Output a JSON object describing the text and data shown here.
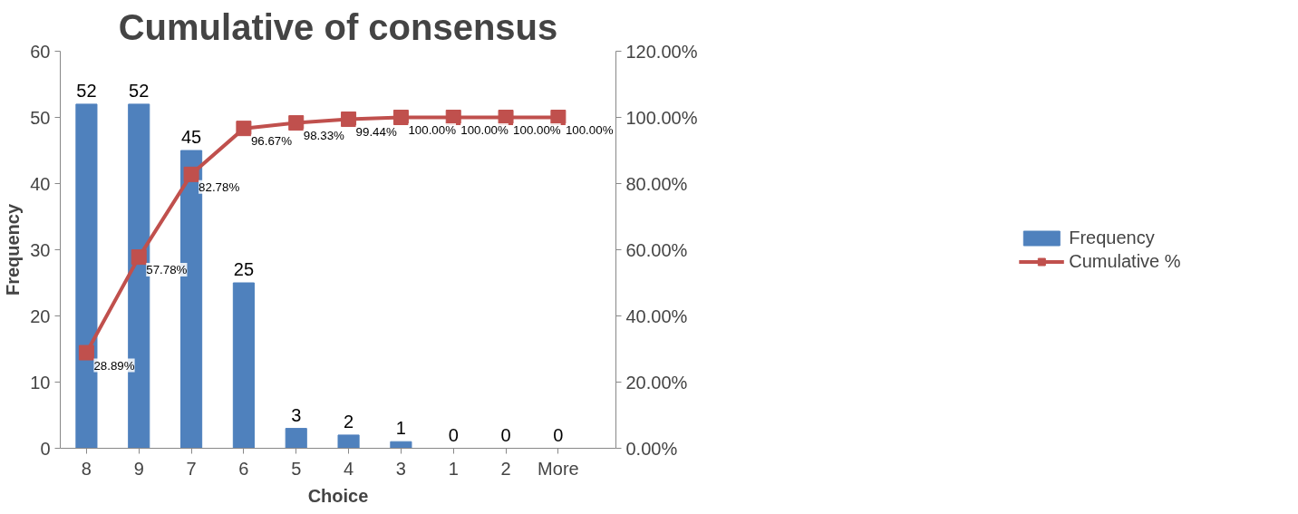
{
  "chart_data": {
    "type": "bar",
    "title": "Cumulative of consensus",
    "xlabel": "Choice",
    "ylabel": "Frequency",
    "categories": [
      "8",
      "9",
      "7",
      "6",
      "5",
      "4",
      "3",
      "1",
      "2",
      "More"
    ],
    "series": [
      {
        "name": "Frequency",
        "color": "#4f81bd",
        "values": [
          52,
          52,
          45,
          25,
          3,
          2,
          1,
          0,
          0,
          0
        ]
      },
      {
        "name": "Cumulative %",
        "type": "line",
        "axis": "y2",
        "color": "#c0504d",
        "values": [
          28.89,
          57.78,
          82.78,
          96.67,
          98.33,
          99.44,
          100,
          100,
          100,
          100
        ],
        "value_labels": [
          "28.89%",
          "57.78%",
          "82.78%",
          "96.67%",
          "98.33%",
          "99.44%",
          "100.00%",
          "100.00%",
          "100.00%",
          "100.00%"
        ]
      }
    ],
    "ylim": [
      0,
      60
    ],
    "yticks": [
      0,
      10,
      20,
      30,
      40,
      50,
      60
    ],
    "y2lim": [
      0,
      120
    ],
    "y2ticks": [
      {
        "value": 0,
        "label": "0.00%"
      },
      {
        "value": 20,
        "label": "20.00%"
      },
      {
        "value": 40,
        "label": "40.00%"
      },
      {
        "value": 60,
        "label": "60.00%"
      },
      {
        "value": 80,
        "label": "80.00%"
      },
      {
        "value": 100,
        "label": "100.00%"
      },
      {
        "value": 120,
        "label": "120.00%"
      }
    ],
    "data_labels": true,
    "legend": "right",
    "grid": false,
    "marker": "square",
    "line_style": "solid"
  }
}
